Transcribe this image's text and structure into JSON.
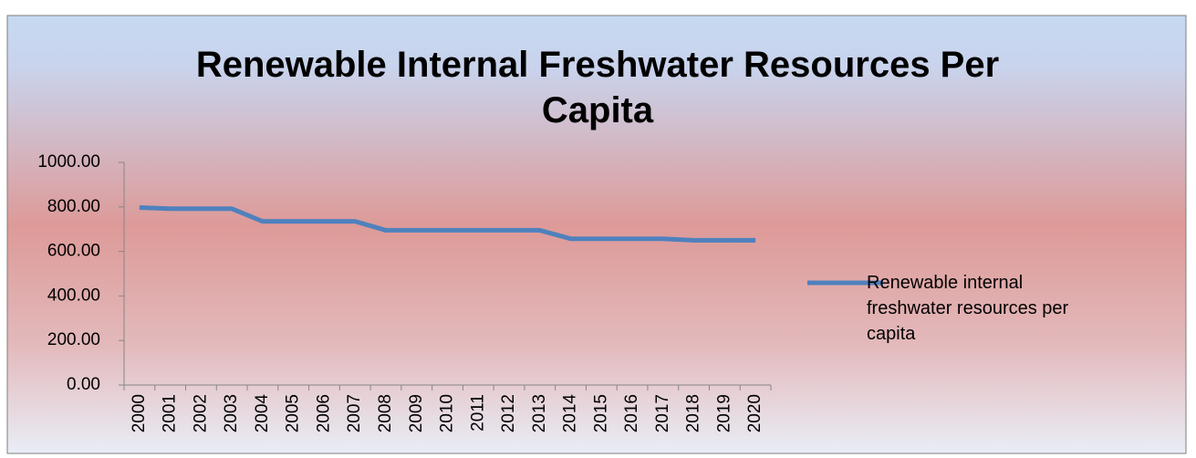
{
  "chart_data": {
    "type": "line",
    "title": "Renewable Internal Freshwater Resources Per Capita",
    "categories": [
      "2000",
      "2001",
      "2002",
      "2003",
      "2004",
      "2005",
      "2006",
      "2007",
      "2008",
      "2009",
      "2010",
      "2011",
      "2012",
      "2013",
      "2014",
      "2015",
      "2016",
      "2017",
      "2018",
      "2019",
      "2020"
    ],
    "series": [
      {
        "name": "Renewable internal freshwater resources per capita",
        "color": "#4f81bd",
        "values": [
          797,
          792,
          792,
          792,
          735,
          735,
          735,
          735,
          695,
          695,
          695,
          695,
          695,
          695,
          657,
          657,
          657,
          657,
          650,
          650,
          650
        ]
      }
    ],
    "ylim": [
      0,
      1000
    ],
    "yticks": [
      {
        "value": 0,
        "label": "0.00"
      },
      {
        "value": 200,
        "label": "200.00"
      },
      {
        "value": 400,
        "label": "400.00"
      },
      {
        "value": 600,
        "label": "600.00"
      },
      {
        "value": 800,
        "label": "800.00"
      },
      {
        "value": 1000,
        "label": "1000.00"
      }
    ],
    "grid": false,
    "legend": "right"
  }
}
